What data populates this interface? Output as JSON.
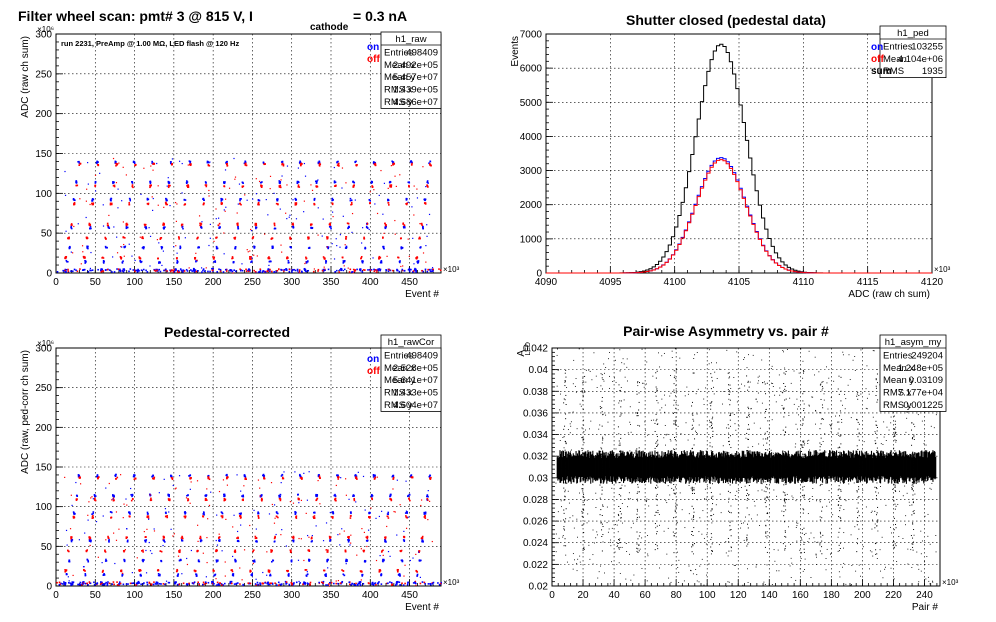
{
  "canvas": {
    "background": "#ffffff"
  },
  "colors": {
    "on": "#0000ff",
    "off": "#ff0000",
    "sum": "#000000",
    "axis": "#000000",
    "grid": "#000000"
  },
  "chart_data": [
    {
      "id": "raw",
      "type": "scatter",
      "title": "Filter wheel scan: pmt#   3 @   815 V, I",
      "title_sub": "cathode",
      "title_tail": "= 0.3 nA",
      "annotation": "run 2231, PreAmp @ 1.00 MΩ, LED flash @  120 Hz",
      "xlabel": "Event #",
      "ylabel": "ADC (raw ch sum)",
      "xlim": [
        0,
        490
      ],
      "ylim": [
        0,
        300
      ],
      "x_exponent": "×10³",
      "y_exponent": "×10⁶",
      "xticks": [
        0,
        50,
        100,
        150,
        200,
        250,
        300,
        350,
        400,
        450
      ],
      "yticks": [
        0,
        50,
        100,
        150,
        200,
        250,
        300
      ],
      "legend": {
        "on": "on",
        "off": "off"
      },
      "stats": {
        "name": "h1_raw",
        "rows": [
          [
            "Entries",
            "498409"
          ],
          [
            "Mean x",
            "2.492e+05"
          ],
          [
            "Mean y",
            "5.457e+07"
          ],
          [
            "RMS x",
            "1.439e+05"
          ],
          [
            "RMS y",
            "4.686e+07"
          ]
        ]
      },
      "series": [
        {
          "name": "on",
          "levels": [
            5,
            15,
            33,
            58,
            93,
            115,
            140
          ],
          "color": "#0000ff"
        },
        {
          "name": "off",
          "levels": [
            20,
            45,
            62,
            88,
            110,
            137
          ],
          "color": "#ff0000"
        }
      ],
      "grid": true
    },
    {
      "id": "ped",
      "type": "line",
      "title": "Shutter closed (pedestal data)",
      "xlabel": "ADC (raw ch sum)",
      "ylabel": "Events",
      "xlim": [
        4090,
        4120
      ],
      "ylim": [
        0,
        7000
      ],
      "x_exponent": "×10³",
      "xticks": [
        4090,
        4095,
        4100,
        4105,
        4110,
        4115,
        4120
      ],
      "yticks": [
        0,
        1000,
        2000,
        3000,
        4000,
        5000,
        6000,
        7000
      ],
      "legend": {
        "on": "on",
        "off": "off",
        "sum": "sum"
      },
      "stats": {
        "name": "h1_ped",
        "rows": [
          [
            "Entries",
            "103255"
          ],
          [
            "Mean",
            "4.104e+06"
          ],
          [
            "RMS",
            "1935"
          ]
        ]
      },
      "series": [
        {
          "name": "sum",
          "mean": 4103.6,
          "sigma": 1.94,
          "peak": 6700,
          "color": "#000000"
        },
        {
          "name": "on",
          "mean": 4103.6,
          "sigma": 1.94,
          "peak": 3380,
          "color": "#0000ff"
        },
        {
          "name": "off",
          "mean": 4103.6,
          "sigma": 1.94,
          "peak": 3320,
          "color": "#ff0000"
        }
      ],
      "grid": true
    },
    {
      "id": "rawCor",
      "type": "scatter",
      "title": "Pedestal-corrected",
      "xlabel": "Event #",
      "ylabel": "ADC (raw, ped-corr ch sum)",
      "xlim": [
        0,
        490
      ],
      "ylim": [
        0,
        300
      ],
      "x_exponent": "×10³",
      "y_exponent": "×10⁶",
      "xticks": [
        0,
        50,
        100,
        150,
        200,
        250,
        300,
        350,
        400,
        450
      ],
      "yticks": [
        0,
        50,
        100,
        150,
        200,
        250,
        300
      ],
      "legend": {
        "on": "on",
        "off": "off"
      },
      "stats": {
        "name": "h1_rawCor",
        "rows": [
          [
            "Entries",
            "498409"
          ],
          [
            "Mean x",
            "2.528e+05"
          ],
          [
            "Mean y",
            "5.641e+07"
          ],
          [
            "RMS x",
            "1.433e+05"
          ],
          [
            "RMS y",
            "4.604e+07"
          ]
        ]
      },
      "series": [
        {
          "name": "on",
          "levels": [
            5,
            15,
            33,
            58,
            93,
            115,
            140
          ],
          "color": "#0000ff"
        },
        {
          "name": "off",
          "levels": [
            20,
            45,
            62,
            88,
            110,
            137
          ],
          "color": "#ff0000"
        }
      ],
      "grid": true
    },
    {
      "id": "asym",
      "type": "scatter",
      "title": "Pair-wise Asymmetry vs. pair #",
      "xlabel": "Pair #",
      "ylabel": "A",
      "ylabel_sub": "LED",
      "xlim": [
        0,
        250
      ],
      "ylim": [
        0.02,
        0.042
      ],
      "x_exponent": "×10³",
      "xticks": [
        0,
        20,
        40,
        60,
        80,
        100,
        120,
        140,
        160,
        180,
        200,
        220,
        240
      ],
      "yticks": [
        0.02,
        0.022,
        0.024,
        0.026,
        0.028,
        0.03,
        0.032,
        0.034,
        0.036,
        0.038,
        0.04,
        0.042
      ],
      "stats": {
        "name": "h1_asym_my",
        "rows": [
          [
            "Entries",
            "249204"
          ],
          [
            "Mean x",
            "1.248e+05"
          ],
          [
            "Mean y",
            "0.03109"
          ],
          [
            "RMS x",
            "7.177e+04"
          ],
          [
            "RMS y",
            "0.001225"
          ]
        ]
      },
      "band": {
        "center": 0.031,
        "halfwidth": 0.0012
      },
      "grid": true
    }
  ]
}
